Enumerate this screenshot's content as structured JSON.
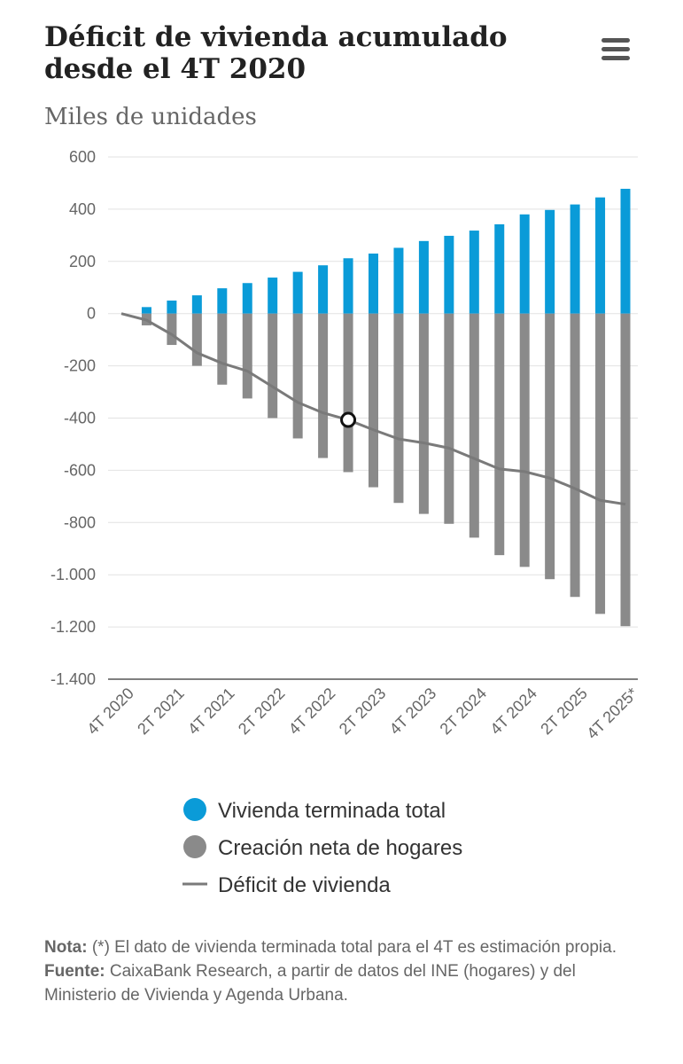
{
  "chart_data": {
    "type": "bar",
    "title": "Déficit de vivienda acumulado desde el 4T 2020",
    "subtitle": "Miles de unidades",
    "categories": [
      "4T 2020",
      null,
      "2T 2021",
      null,
      "4T 2021",
      null,
      "2T 2022",
      null,
      "4T 2022",
      null,
      "2T 2023",
      null,
      "4T 2023",
      null,
      "2T 2024",
      null,
      "4T 2024",
      null,
      "2T 2025",
      null,
      "4T 2025*"
    ],
    "series": [
      {
        "name": "Vivienda terminada total",
        "type": "bar",
        "color": "#0a9bd8",
        "values": [
          null,
          25,
          50,
          70,
          97,
          117,
          138,
          160,
          185,
          212,
          230,
          252,
          278,
          298,
          318,
          342,
          380,
          397,
          418,
          445,
          478
        ]
      },
      {
        "name": "Creación neta de hogares",
        "type": "bar",
        "color": "#8a8a8a",
        "values": [
          null,
          -45,
          -120,
          -200,
          -272,
          -325,
          -400,
          -478,
          -553,
          -607,
          -665,
          -725,
          -767,
          -805,
          -858,
          -925,
          -970,
          -1017,
          -1085,
          -1150,
          -1197
        ]
      },
      {
        "name": "Déficit de vivienda",
        "type": "line",
        "color": "#7a7a7a",
        "values": [
          0,
          -25,
          -80,
          -150,
          -190,
          -220,
          -280,
          -340,
          -380,
          -407,
          -445,
          -480,
          -495,
          -515,
          -555,
          -595,
          -605,
          -630,
          -670,
          -715,
          -730
        ]
      }
    ],
    "ylim": [
      -1400,
      600
    ],
    "yticks": [
      {
        "value": -1400,
        "label": "-1.400"
      },
      {
        "value": -1200,
        "label": "-1.200"
      },
      {
        "value": -1000,
        "label": "-1.000"
      },
      -800,
      -600,
      -400,
      -200,
      0,
      200,
      400,
      600
    ],
    "grid": true,
    "highlight_index": 9
  },
  "notes": [
    {
      "label": "Nota:",
      "text": "(*) El dato de vivienda terminada total para el 4T es estimación propia."
    },
    {
      "label": "Fuente:",
      "text": "CaixaBank Research, a partir de datos del INE (hogares) y del Ministerio de Vivienda y Agenda Urbana."
    }
  ]
}
